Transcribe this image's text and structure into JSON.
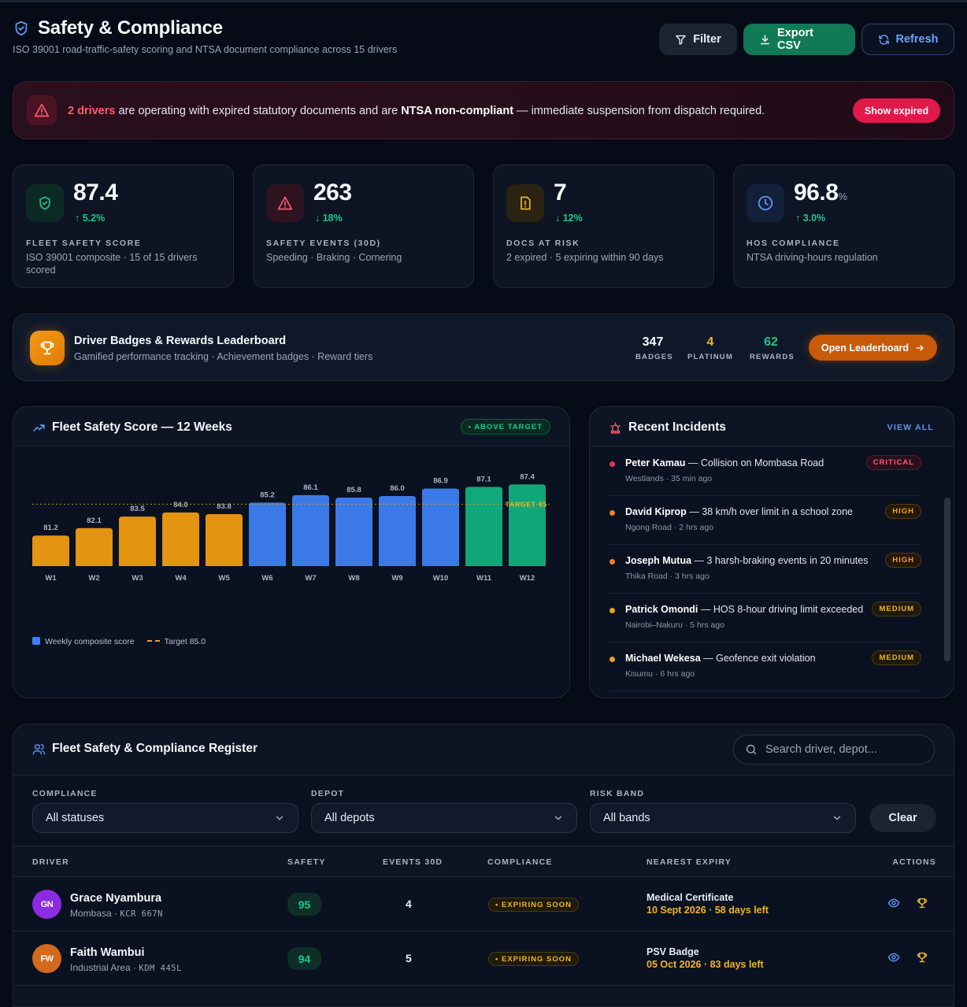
{
  "header": {
    "title": "Safety & Compliance",
    "subtitle": "ISO 39001 road-traffic-safety scoring and NTSA document compliance across 15 drivers",
    "filter_label": "Filter",
    "export_label": "Export CSV",
    "refresh_label": "Refresh"
  },
  "alert": {
    "count_text": "2 drivers",
    "text_a": " are operating with expired statutory documents and are ",
    "bold_text": "NTSA non-compliant",
    "text_b": " — immediate suspension from dispatch required.",
    "button_label": "Show expired"
  },
  "kpis": [
    {
      "value": "87.4",
      "unit": "",
      "delta": "↑ 5.2%",
      "label": "FLEET SAFETY SCORE",
      "desc": "ISO 39001 composite · 15 of 15 drivers scored",
      "icon": "shield-check-icon",
      "color": "#21c58a"
    },
    {
      "value": "263",
      "unit": "",
      "delta": "↓ 18%",
      "label": "SAFETY EVENTS (30D)",
      "desc": "Speeding · Braking · Cornering",
      "icon": "warning-triangle-icon",
      "color": "#ff5a72"
    },
    {
      "value": "7",
      "unit": "",
      "delta": "↓ 12%",
      "label": "DOCS AT RISK",
      "desc": "2 expired · 5 expiring within 90 days",
      "icon": "document-alert-icon",
      "color": "#f0b429"
    },
    {
      "value": "96.8",
      "unit": "%",
      "delta": "↑ 3.0%",
      "label": "HOS COMPLIANCE",
      "desc": "NTSA driving-hours regulation",
      "icon": "clock-icon",
      "color": "#5b95f0"
    }
  ],
  "leaderboard": {
    "title": "Driver Badges & Rewards Leaderboard",
    "subtitle": "Gamified performance tracking · Achievement badges · Reward tiers",
    "stats": [
      {
        "value": "347",
        "label": "BADGES",
        "color": "#f5f8fc"
      },
      {
        "value": "4",
        "label": "PLATINUM",
        "color": "#f0b429"
      },
      {
        "value": "62",
        "label": "REWARDS",
        "color": "#21c58a"
      }
    ],
    "button_label": "Open Leaderboard"
  },
  "chart_panel": {
    "title": "Fleet Safety Score — 12 Weeks",
    "badge": "• ABOVE TARGET",
    "legend_series": "Weekly composite score",
    "legend_target": "Target 85.0",
    "target_label": "TARGET 85"
  },
  "chart_data": {
    "type": "bar",
    "categories": [
      "W1",
      "W2",
      "W3",
      "W4",
      "W5",
      "W6",
      "W7",
      "W8",
      "W9",
      "W10",
      "W11",
      "W12"
    ],
    "values": [
      81.2,
      82.1,
      83.5,
      84.0,
      83.8,
      85.2,
      86.1,
      85.8,
      86.0,
      86.9,
      87.1,
      87.4
    ],
    "value_labels": [
      "81.2",
      "82.1",
      "83.5",
      "84.0",
      "83.8",
      "85.2",
      "86.1",
      "85.8",
      "86.0",
      "86.9",
      "87.1",
      "87.4"
    ],
    "target": 85.0,
    "series": [
      {
        "name": "Weekly composite score",
        "values": [
          81.2,
          82.1,
          83.5,
          84.0,
          83.8,
          85.2,
          86.1,
          85.8,
          86.0,
          86.9,
          87.1,
          87.4
        ]
      }
    ],
    "colors": {
      "below": "#e39410",
      "above": "#3b7ae6",
      "top": "#10a878",
      "target": "#f0a020"
    },
    "bar_color_groups": [
      "below",
      "below",
      "below",
      "below",
      "below",
      "above",
      "above",
      "above",
      "above",
      "above",
      "top",
      "top"
    ],
    "ylim": [
      77.5,
      88
    ],
    "grid": false,
    "legend_position": "bottom-left"
  },
  "incidents": {
    "title": "Recent Incidents",
    "view_all": "VIEW ALL",
    "items": [
      {
        "name": "Peter Kamau",
        "text": " — Collision on Mombasa Road",
        "meta": "Westlands · 35 min ago",
        "severity": "CRITICAL",
        "dot": "#e8334f",
        "sev_color": "#ff5a72",
        "sev_bg": "#2a0f1c",
        "sev_border": "#5a1a2d"
      },
      {
        "name": "David Kiprop",
        "text": " — 38 km/h over limit in a school zone",
        "meta": "Ngong Road · 2 hrs ago",
        "severity": "HIGH",
        "dot": "#f08020",
        "sev_color": "#f0a020",
        "sev_bg": "#241808",
        "sev_border": "#5a3a10"
      },
      {
        "name": "Joseph Mutua",
        "text": " — 3 harsh-braking events in 20 minutes",
        "meta": "Thika Road · 3 hrs ago",
        "severity": "HIGH",
        "dot": "#f08020",
        "sev_color": "#f0a020",
        "sev_bg": "#241808",
        "sev_border": "#5a3a10"
      },
      {
        "name": "Patrick Omondi",
        "text": " — HOS 8-hour driving limit exceeded",
        "meta": "Nairobi–Nakuru · 5 hrs ago",
        "severity": "MEDIUM",
        "dot": "#f0a020",
        "sev_color": "#f0b429",
        "sev_bg": "#1f1a0c",
        "sev_border": "#4a3a12"
      },
      {
        "name": "Michael Wekesa",
        "text": " — Geofence exit violation",
        "meta": "Kisumu · 6 hrs ago",
        "severity": "MEDIUM",
        "dot": "#f0a020",
        "sev_color": "#f0b429",
        "sev_bg": "#1f1a0c",
        "sev_border": "#4a3a12"
      }
    ]
  },
  "register": {
    "title": "Fleet Safety & Compliance Register",
    "search_placeholder": "Search driver, depot...",
    "filters": [
      {
        "label": "COMPLIANCE",
        "value": "All statuses"
      },
      {
        "label": "DEPOT",
        "value": "All depots"
      },
      {
        "label": "RISK BAND",
        "value": "All bands"
      }
    ],
    "clear_label": "Clear",
    "columns": [
      "DRIVER",
      "SAFETY",
      "EVENTS 30D",
      "COMPLIANCE",
      "NEAREST EXPIRY",
      "ACTIONS"
    ],
    "rows": [
      {
        "initials": "GN",
        "avatar_color": "#8b2be2",
        "name": "Grace Nyambura",
        "depot": "Mombasa · ",
        "plate": "KCR 667N",
        "safety": "95",
        "events": "4",
        "compliance": "• EXPIRING SOON",
        "expiry_doc": "Medical Certificate",
        "expiry_date": "10 Sept 2026 · 58 days left"
      },
      {
        "initials": "FW",
        "avatar_color": "#d2691e",
        "name": "Faith Wambui",
        "depot": "Industrial Area · ",
        "plate": "KDM 445L",
        "safety": "94",
        "events": "5",
        "compliance": "• EXPIRING SOON",
        "expiry_doc": "PSV Badge",
        "expiry_date": "05 Oct 2026 · 83 days left"
      }
    ]
  }
}
